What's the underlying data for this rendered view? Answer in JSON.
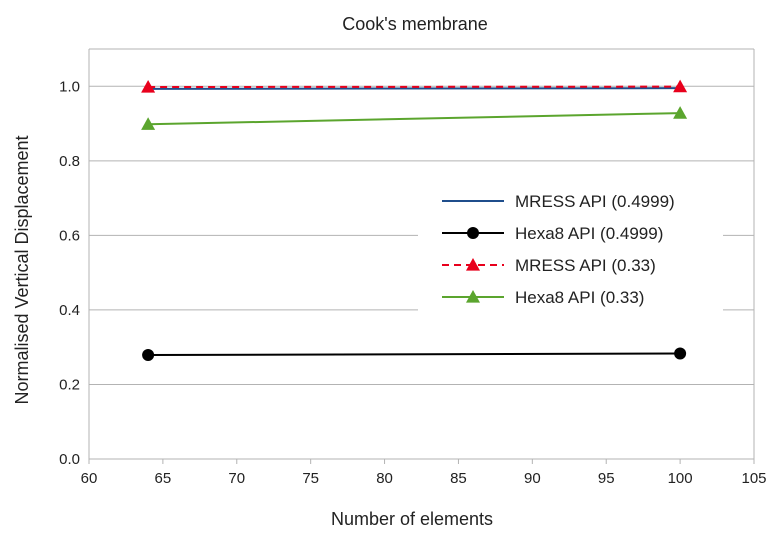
{
  "chart_data": {
    "type": "line",
    "title": "Cook's membrane",
    "xlabel": "Number of elements",
    "ylabel": "Normalised Vertical Displacement",
    "xlim": [
      60,
      105
    ],
    "ylim": [
      0.0,
      1.1
    ],
    "x_ticks": [
      60,
      65,
      70,
      75,
      80,
      85,
      90,
      95,
      100,
      105
    ],
    "y_ticks": [
      0.0,
      0.2,
      0.4,
      0.6,
      0.8,
      1.0
    ],
    "y_tick_labels": [
      "0.0",
      "0.2",
      "0.4",
      "0.6",
      "0.8",
      "1.0"
    ],
    "grid": "horizontal",
    "legend_position": "right",
    "series": [
      {
        "name": "MRESS API (0.4999)",
        "x": [
          64,
          100
        ],
        "y": [
          0.993,
          0.995
        ],
        "color": "#1f4e8c",
        "dash": "solid",
        "marker": "none"
      },
      {
        "name": "Hexa8 API (0.4999)",
        "x": [
          64,
          100
        ],
        "y": [
          0.279,
          0.283
        ],
        "color": "#000000",
        "dash": "solid",
        "marker": "circle"
      },
      {
        "name": "MRESS API (0.33)",
        "x": [
          64,
          100
        ],
        "y": [
          0.998,
          0.999
        ],
        "color": "#e8001c",
        "dash": "dashed",
        "marker": "triangle"
      },
      {
        "name": "Hexa8 API (0.33)",
        "x": [
          64,
          100
        ],
        "y": [
          0.898,
          0.928
        ],
        "color": "#5ba52e",
        "dash": "solid",
        "marker": "triangle"
      }
    ]
  }
}
